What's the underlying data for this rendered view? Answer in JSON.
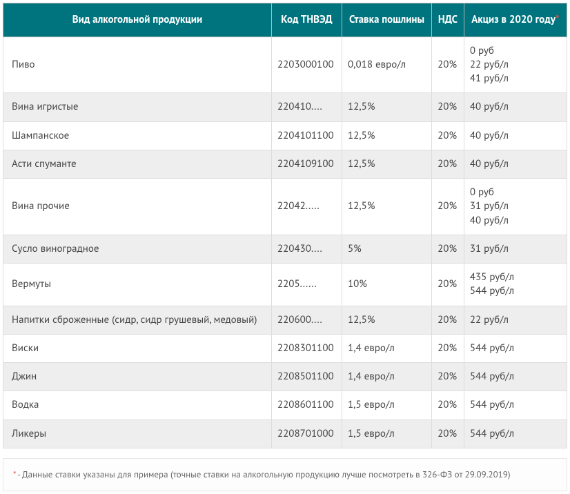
{
  "table": {
    "header_bg": "#00747e",
    "header_color": "#ffffff",
    "alt_row_bg": "#eeeeee",
    "border_color": "#dddddd",
    "columns": [
      {
        "label": "Вид алкогольной продукции"
      },
      {
        "label": "Код ТНВЭД"
      },
      {
        "label": "Ставка пошлины"
      },
      {
        "label": "НДС"
      },
      {
        "label": "Акциз в 2020 году",
        "has_asterisk": true
      }
    ],
    "rows": [
      {
        "product": "Пиво",
        "code": "2203000100",
        "rate": "0,018 евро/л",
        "vat": "20%",
        "excise": "0 руб\n22 руб/л\n41 руб/л",
        "alt": false
      },
      {
        "product": "Вина игристые",
        "code": "220410....",
        "rate": "12,5%",
        "vat": "20%",
        "excise": "40 руб/л",
        "alt": true
      },
      {
        "product": "Шампанское",
        "code": "2204101100",
        "rate": "12,5%",
        "vat": "20%",
        "excise": "40 руб/л",
        "alt": false
      },
      {
        "product": "Асти спуманте",
        "code": "2204109100",
        "rate": "12,5%",
        "vat": "20%",
        "excise": "40 руб/л",
        "alt": true
      },
      {
        "product": "Вина прочие",
        "code": "22042.....",
        "rate": "12,5%",
        "vat": "20%",
        "excise": "0 руб\n31 руб/л\n40 руб/л",
        "alt": false
      },
      {
        "product": "Сусло виноградное",
        "code": "220430....",
        "rate": "5%",
        "vat": "20%",
        "excise": "31 руб/л",
        "alt": true
      },
      {
        "product": "Вермуты",
        "code": "2205......",
        "rate": "10%",
        "vat": "20%",
        "excise": "435 руб/л\n544 руб/л",
        "alt": false
      },
      {
        "product": "Напитки сброженные (сидр, сидр грушевый, медовый)",
        "code": "220600....",
        "rate": "12,5%",
        "vat": "20%",
        "excise": "22 руб/л",
        "alt": true
      },
      {
        "product": "Виски",
        "code": "2208301100",
        "rate": "1,4 евро/л",
        "vat": "20%",
        "excise": "544 руб/л",
        "alt": false
      },
      {
        "product": "Джин",
        "code": "2208501100",
        "rate": "1,4 евро/л",
        "vat": "20%",
        "excise": "544 руб/л",
        "alt": true
      },
      {
        "product": "Водка",
        "code": "2208601100",
        "rate": "1,5 евро/л",
        "vat": "20%",
        "excise": "544 руб/л",
        "alt": false
      },
      {
        "product": "Ликеры",
        "code": "2208701000",
        "rate": "1,5 евро/л",
        "vat": "20%",
        "excise": "544 руб/л",
        "alt": true
      }
    ]
  },
  "footnote": {
    "asterisk": "*",
    "text": " - Данные ставки указаны для примера (точные ставки на алкогольную продукцию лучше посмотреть в 326-ФЗ от 29.09.2019)",
    "asterisk_color": "#d9534f"
  }
}
